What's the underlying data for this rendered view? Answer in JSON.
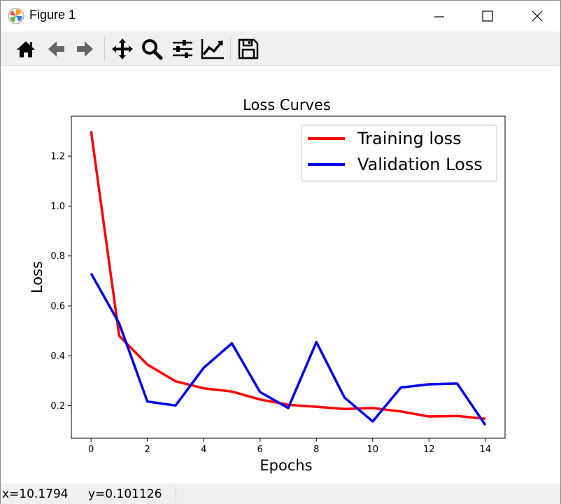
{
  "window": {
    "title": "Figure 1"
  },
  "toolbar": {
    "tools": [
      "home-icon",
      "back-icon",
      "forward-icon",
      "pan-icon",
      "zoom-icon",
      "subplots-icon",
      "axes-edit-icon",
      "save-icon"
    ]
  },
  "status": {
    "x": "x=10.1794",
    "y": "y=0.101126"
  },
  "colors": {
    "training": "#ff0000",
    "validation": "#0000ee"
  },
  "chart_data": {
    "type": "line",
    "title": "Loss Curves",
    "xlabel": "Epochs",
    "ylabel": "Loss",
    "xlim": [
      -0.7,
      14.7
    ],
    "ylim": [
      0.07,
      1.36
    ],
    "xticks": [
      0,
      2,
      4,
      6,
      8,
      10,
      12,
      14
    ],
    "yticks": [
      0.2,
      0.4,
      0.6,
      0.8,
      1.0,
      1.2
    ],
    "xtick_labels": [
      "0",
      "2",
      "4",
      "6",
      "8",
      "10",
      "12",
      "14"
    ],
    "ytick_labels": [
      "0.2",
      "0.4",
      "0.6",
      "0.8",
      "1.0",
      "1.2"
    ],
    "legend_position": "top-right",
    "grid": false,
    "x": [
      0,
      1,
      2,
      3,
      4,
      5,
      6,
      7,
      8,
      9,
      10,
      11,
      12,
      13,
      14
    ],
    "series": [
      {
        "name": "Training loss",
        "color": "#ff0000",
        "values": [
          1.3,
          0.48,
          0.365,
          0.298,
          0.27,
          0.257,
          0.225,
          0.204,
          0.196,
          0.187,
          0.191,
          0.177,
          0.157,
          0.159,
          0.148
        ]
      },
      {
        "name": "Validation Loss",
        "color": "#0000ee",
        "values": [
          0.73,
          0.53,
          0.217,
          0.201,
          0.352,
          0.45,
          0.255,
          0.191,
          0.455,
          0.233,
          0.137,
          0.273,
          0.286,
          0.289,
          0.123
        ]
      }
    ]
  }
}
